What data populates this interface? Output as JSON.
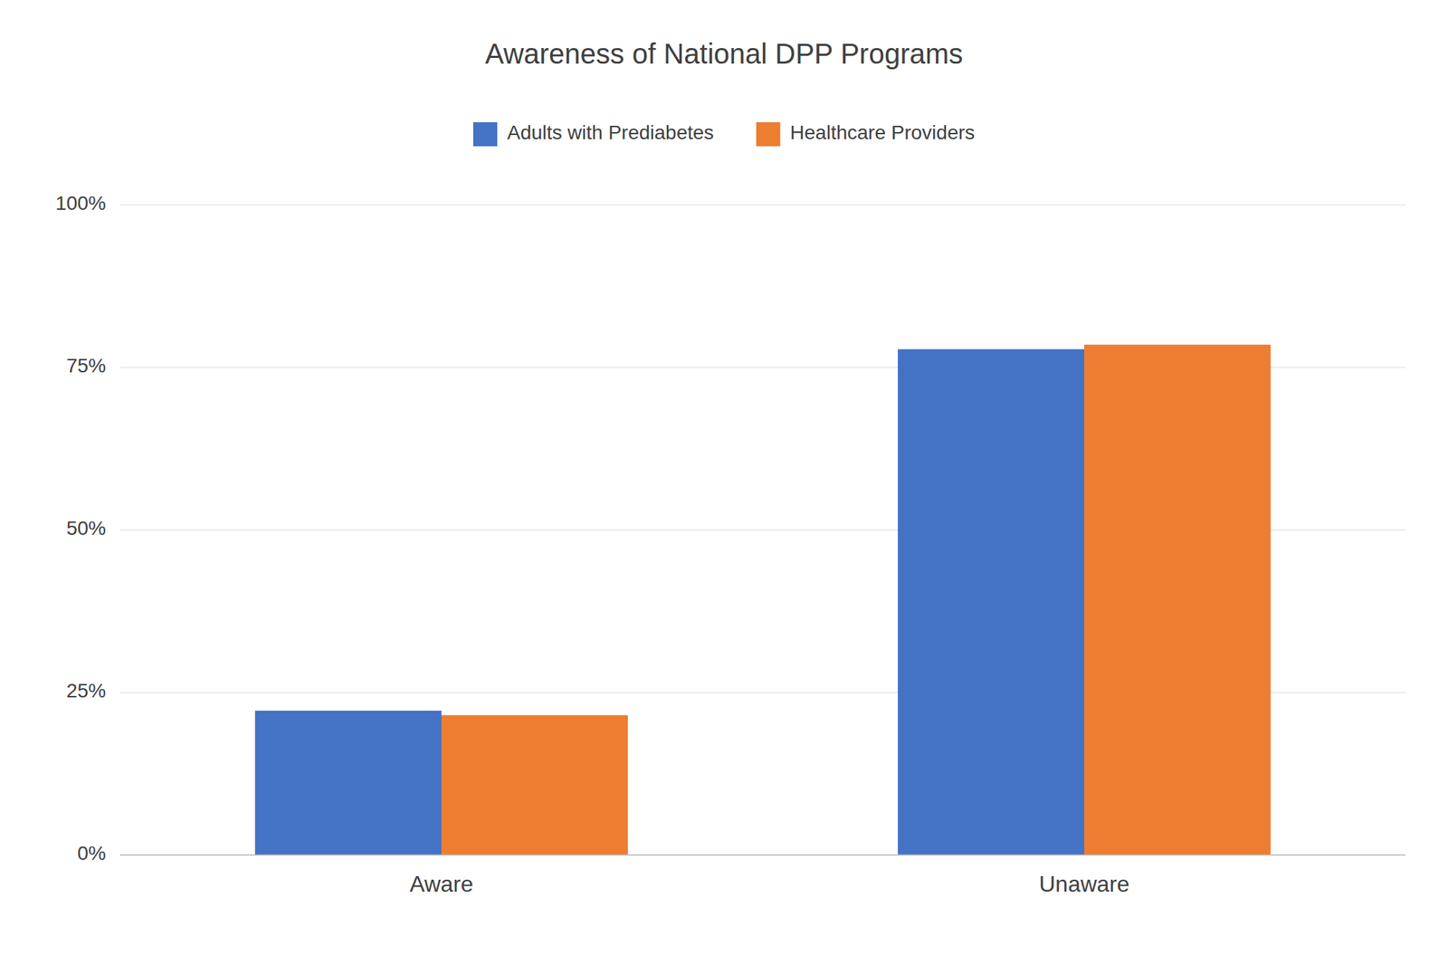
{
  "chart_data": {
    "type": "bar",
    "title": "Awareness of National DPP Programs",
    "categories": [
      "Aware",
      "Unaware"
    ],
    "series": [
      {
        "name": "Adults with Prediabetes",
        "color": "#4472C4",
        "values": [
          0.222,
          0.778
        ]
      },
      {
        "name": "Healthcare Providers",
        "color": "#ED7D31",
        "values": [
          0.215,
          0.785
        ]
      }
    ],
    "ylim": [
      0,
      1.0
    ],
    "yticks": [
      {
        "value": 0,
        "label": "0%"
      },
      {
        "value": 0.25,
        "label": "25%"
      },
      {
        "value": 0.5,
        "label": "50%"
      },
      {
        "value": 0.75,
        "label": "75%"
      },
      {
        "value": 1.0,
        "label": "100%"
      }
    ],
    "grid": true,
    "legend": "top"
  }
}
